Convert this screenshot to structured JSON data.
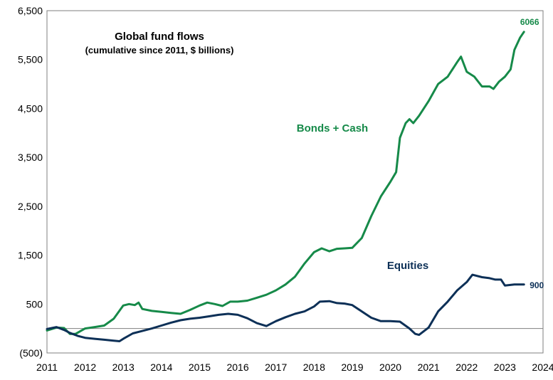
{
  "chart_data": {
    "type": "line",
    "title": "Global fund flows",
    "subtitle": "(cumulative since 2011, $ billions)",
    "xlabel": "",
    "ylabel": "",
    "xlim": [
      2011,
      2024
    ],
    "ylim": [
      -500,
      6500
    ],
    "x_ticks": [
      2011,
      2012,
      2013,
      2014,
      2015,
      2016,
      2017,
      2018,
      2019,
      2020,
      2021,
      2022,
      2023,
      2024
    ],
    "x_tick_labels": [
      "2011",
      "2012",
      "2013",
      "2014",
      "2015",
      "2016",
      "2017",
      "2018",
      "2019",
      "2020",
      "2021",
      "2022",
      "2023",
      "2024"
    ],
    "y_ticks": [
      -500,
      500,
      1500,
      2500,
      3500,
      4500,
      5500,
      6500
    ],
    "y_tick_labels": [
      "(500)",
      "500",
      "1,500",
      "2,500",
      "3,500",
      "4,500",
      "5,500",
      "6,500"
    ],
    "reference_line_y": 0,
    "grid": false,
    "legend": "none",
    "series": [
      {
        "name": "Bonds + Cash",
        "label": "Bonds + Cash",
        "end_label": "6066",
        "color": "#168a49",
        "points": [
          [
            2011.0,
            -40
          ],
          [
            2011.25,
            20
          ],
          [
            2011.45,
            10
          ],
          [
            2011.6,
            -110
          ],
          [
            2011.75,
            -110
          ],
          [
            2012.0,
            0
          ],
          [
            2012.25,
            30
          ],
          [
            2012.5,
            60
          ],
          [
            2012.75,
            200
          ],
          [
            2013.0,
            470
          ],
          [
            2013.15,
            500
          ],
          [
            2013.3,
            480
          ],
          [
            2013.4,
            530
          ],
          [
            2013.5,
            400
          ],
          [
            2013.75,
            360
          ],
          [
            2014.0,
            340
          ],
          [
            2014.25,
            320
          ],
          [
            2014.5,
            300
          ],
          [
            2014.75,
            380
          ],
          [
            2015.0,
            470
          ],
          [
            2015.2,
            530
          ],
          [
            2015.4,
            500
          ],
          [
            2015.6,
            460
          ],
          [
            2015.8,
            550
          ],
          [
            2016.0,
            550
          ],
          [
            2016.25,
            570
          ],
          [
            2016.5,
            630
          ],
          [
            2016.75,
            690
          ],
          [
            2017.0,
            780
          ],
          [
            2017.25,
            900
          ],
          [
            2017.5,
            1060
          ],
          [
            2017.75,
            1330
          ],
          [
            2018.0,
            1560
          ],
          [
            2018.2,
            1640
          ],
          [
            2018.4,
            1580
          ],
          [
            2018.6,
            1630
          ],
          [
            2018.8,
            1640
          ],
          [
            2019.0,
            1650
          ],
          [
            2019.25,
            1850
          ],
          [
            2019.5,
            2300
          ],
          [
            2019.75,
            2700
          ],
          [
            2020.0,
            3000
          ],
          [
            2020.15,
            3200
          ],
          [
            2020.25,
            3900
          ],
          [
            2020.4,
            4200
          ],
          [
            2020.5,
            4280
          ],
          [
            2020.6,
            4200
          ],
          [
            2020.75,
            4350
          ],
          [
            2021.0,
            4650
          ],
          [
            2021.25,
            5000
          ],
          [
            2021.5,
            5150
          ],
          [
            2021.75,
            5450
          ],
          [
            2021.85,
            5560
          ],
          [
            2022.0,
            5250
          ],
          [
            2022.2,
            5150
          ],
          [
            2022.4,
            4950
          ],
          [
            2022.6,
            4950
          ],
          [
            2022.7,
            4900
          ],
          [
            2022.85,
            5050
          ],
          [
            2023.0,
            5150
          ],
          [
            2023.15,
            5300
          ],
          [
            2023.25,
            5700
          ],
          [
            2023.4,
            5950
          ],
          [
            2023.5,
            6066
          ]
        ]
      },
      {
        "name": "Equities",
        "label": "Equities",
        "end_label": "900",
        "color": "#0d3057",
        "points": [
          [
            2011.0,
            -10
          ],
          [
            2011.25,
            30
          ],
          [
            2011.45,
            -30
          ],
          [
            2011.6,
            -90
          ],
          [
            2011.8,
            -150
          ],
          [
            2012.0,
            -190
          ],
          [
            2012.25,
            -210
          ],
          [
            2012.5,
            -230
          ],
          [
            2012.75,
            -250
          ],
          [
            2012.9,
            -260
          ],
          [
            2013.0,
            -210
          ],
          [
            2013.25,
            -100
          ],
          [
            2013.5,
            -50
          ],
          [
            2013.75,
            0
          ],
          [
            2014.0,
            60
          ],
          [
            2014.25,
            120
          ],
          [
            2014.5,
            170
          ],
          [
            2014.75,
            200
          ],
          [
            2015.0,
            220
          ],
          [
            2015.25,
            250
          ],
          [
            2015.5,
            280
          ],
          [
            2015.75,
            300
          ],
          [
            2016.0,
            280
          ],
          [
            2016.25,
            210
          ],
          [
            2016.5,
            110
          ],
          [
            2016.75,
            50
          ],
          [
            2017.0,
            150
          ],
          [
            2017.25,
            230
          ],
          [
            2017.5,
            300
          ],
          [
            2017.75,
            350
          ],
          [
            2018.0,
            450
          ],
          [
            2018.15,
            550
          ],
          [
            2018.4,
            560
          ],
          [
            2018.6,
            520
          ],
          [
            2018.8,
            510
          ],
          [
            2019.0,
            480
          ],
          [
            2019.25,
            350
          ],
          [
            2019.5,
            220
          ],
          [
            2019.75,
            150
          ],
          [
            2020.0,
            150
          ],
          [
            2020.25,
            140
          ],
          [
            2020.5,
            0
          ],
          [
            2020.65,
            -110
          ],
          [
            2020.75,
            -130
          ],
          [
            2021.0,
            20
          ],
          [
            2021.25,
            350
          ],
          [
            2021.5,
            550
          ],
          [
            2021.75,
            780
          ],
          [
            2022.0,
            950
          ],
          [
            2022.15,
            1100
          ],
          [
            2022.4,
            1050
          ],
          [
            2022.6,
            1030
          ],
          [
            2022.75,
            1000
          ],
          [
            2022.9,
            1000
          ],
          [
            2023.0,
            880
          ],
          [
            2023.25,
            900
          ],
          [
            2023.5,
            900
          ]
        ]
      }
    ]
  }
}
